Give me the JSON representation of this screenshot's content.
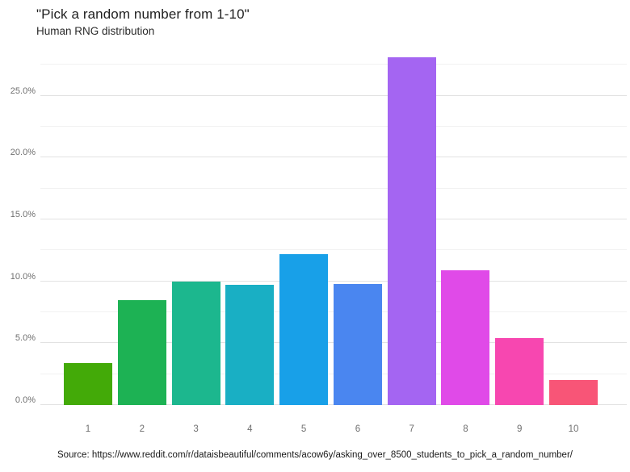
{
  "header": {
    "title": "\"Pick a random number from 1-10\"",
    "subtitle": "Human RNG distribution"
  },
  "footer": {
    "source": "Source: https://www.reddit.com/r/dataisbeautiful/comments/acow6y/asking_over_8500_students_to_pick_a_random_number/"
  },
  "chart_data": {
    "type": "bar",
    "title": "\"Pick a random number from 1-10\"",
    "subtitle": "Human RNG distribution",
    "categories": [
      "1",
      "2",
      "3",
      "4",
      "5",
      "6",
      "7",
      "8",
      "9",
      "10"
    ],
    "values": [
      3.4,
      8.5,
      10.0,
      9.7,
      12.2,
      9.8,
      28.1,
      10.9,
      5.4,
      2.0
    ],
    "value_unit": "%",
    "bar_colors": [
      "#43aa08",
      "#1db254",
      "#1cb78e",
      "#19afc4",
      "#18a0e8",
      "#4a86f0",
      "#a465f2",
      "#e04ae8",
      "#f747b0",
      "#f85577"
    ],
    "xlabel": "",
    "ylabel": "",
    "ylim": [
      0,
      28.5
    ],
    "grid": true,
    "legend": "none",
    "y_axis": {
      "max": 28.5,
      "ticks": [
        {
          "value": 0,
          "label": "0.0%",
          "major": true
        },
        {
          "value": 2.5,
          "label": "",
          "major": false
        },
        {
          "value": 5,
          "label": "5.0%",
          "major": true
        },
        {
          "value": 7.5,
          "label": "",
          "major": false
        },
        {
          "value": 10,
          "label": "10.0%",
          "major": true
        },
        {
          "value": 12.5,
          "label": "",
          "major": false
        },
        {
          "value": 15,
          "label": "15.0%",
          "major": true
        },
        {
          "value": 17.5,
          "label": "",
          "major": false
        },
        {
          "value": 20,
          "label": "20.0%",
          "major": true
        },
        {
          "value": 22.5,
          "label": "",
          "major": false
        },
        {
          "value": 25,
          "label": "25.0%",
          "major": true
        },
        {
          "value": 27.5,
          "label": "",
          "major": false
        }
      ]
    }
  }
}
